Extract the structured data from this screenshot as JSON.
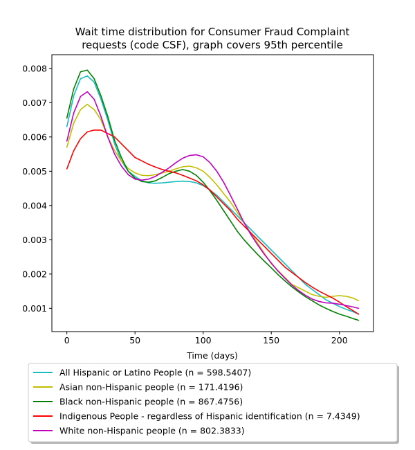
{
  "chart_data": {
    "type": "line",
    "title_lines": [
      "Wait time distribution  for Consumer Fraud Complaint",
      "requests (code CSF), graph covers 95th percentile"
    ],
    "xlabel": "Time (days)",
    "ylabel": "",
    "xlim": [
      -11,
      225
    ],
    "ylim": [
      0.00032,
      0.0084
    ],
    "xticks": [
      0,
      50,
      100,
      150,
      200
    ],
    "yticks": [
      0.001,
      0.002,
      0.003,
      0.004,
      0.005,
      0.006,
      0.007,
      0.008
    ],
    "ytick_labels": [
      "0.001",
      "0.002",
      "0.003",
      "0.004",
      "0.005",
      "0.006",
      "0.007",
      "0.008"
    ],
    "grid": false,
    "legend_position": "below",
    "x": [
      0,
      5,
      10,
      15,
      20,
      25,
      30,
      35,
      40,
      45,
      50,
      55,
      60,
      65,
      70,
      75,
      80,
      85,
      90,
      95,
      100,
      105,
      110,
      115,
      120,
      125,
      130,
      135,
      140,
      145,
      150,
      155,
      160,
      165,
      170,
      175,
      180,
      185,
      190,
      195,
      200,
      205,
      210,
      214
    ],
    "series": [
      {
        "name": "All Hispanic or Latino People (n = 598.5407)",
        "color": "#17bdbf",
        "values": [
          0.0063,
          0.0072,
          0.0077,
          0.00778,
          0.0076,
          0.0071,
          0.0065,
          0.0058,
          0.0053,
          0.005,
          0.00485,
          0.00472,
          0.00466,
          0.00465,
          0.00466,
          0.00468,
          0.0047,
          0.00471,
          0.0047,
          0.00466,
          0.00458,
          0.00445,
          0.0043,
          0.0041,
          0.0039,
          0.0037,
          0.0035,
          0.0033,
          0.0031,
          0.0029,
          0.0027,
          0.0025,
          0.0023,
          0.0021,
          0.0019,
          0.0017,
          0.00155,
          0.0014,
          0.00125,
          0.00115,
          0.00105,
          0.00097,
          0.0009,
          0.00083
        ]
      },
      {
        "name": "Asian non-Hispanic people (n = 171.4196)",
        "color": "#bfbf00",
        "values": [
          0.0057,
          0.0064,
          0.0068,
          0.00695,
          0.0068,
          0.0065,
          0.006,
          0.0056,
          0.0053,
          0.00508,
          0.00495,
          0.00488,
          0.00487,
          0.0049,
          0.00495,
          0.005,
          0.00507,
          0.00513,
          0.00515,
          0.0051,
          0.005,
          0.00482,
          0.0046,
          0.00435,
          0.0041,
          0.0038,
          0.0035,
          0.0032,
          0.0029,
          0.0026,
          0.0023,
          0.0021,
          0.0019,
          0.0017,
          0.0016,
          0.0015,
          0.0014,
          0.00135,
          0.00132,
          0.00135,
          0.00137,
          0.00135,
          0.0013,
          0.00122
        ]
      },
      {
        "name": "Black non-Hispanic people (n = 867.4756)",
        "color": "#008000",
        "values": [
          0.00655,
          0.0074,
          0.0079,
          0.00795,
          0.0077,
          0.0072,
          0.0066,
          0.0059,
          0.0054,
          0.005,
          0.0048,
          0.0047,
          0.00468,
          0.00472,
          0.00482,
          0.00493,
          0.005,
          0.00505,
          0.005,
          0.00488,
          0.00468,
          0.00443,
          0.00415,
          0.00385,
          0.00355,
          0.00325,
          0.003,
          0.00278,
          0.00257,
          0.00237,
          0.00218,
          0.00198,
          0.0018,
          0.00163,
          0.00148,
          0.00134,
          0.00122,
          0.0011,
          0.001,
          0.00091,
          0.00083,
          0.00077,
          0.0007,
          0.00065
        ]
      },
      {
        "name": "Indigenous People - regardless of Hispanic identification (n = 7.4349)",
        "color": "#ff0000",
        "values": [
          0.00507,
          0.0056,
          0.00595,
          0.00615,
          0.0062,
          0.0062,
          0.0061,
          0.006,
          0.0058,
          0.0056,
          0.0054,
          0.0053,
          0.0052,
          0.00512,
          0.00505,
          0.005,
          0.00495,
          0.00488,
          0.0048,
          0.00472,
          0.0046,
          0.00445,
          0.00425,
          0.00405,
          0.00385,
          0.0036,
          0.0034,
          0.0032,
          0.003,
          0.0028,
          0.0026,
          0.0024,
          0.0022,
          0.00205,
          0.0019,
          0.00175,
          0.00162,
          0.0015,
          0.0014,
          0.0013,
          0.00118,
          0.00105,
          0.00093,
          0.00083
        ]
      },
      {
        "name": "White non-Hispanic people (n = 802.3833)",
        "color": "#bf00bf",
        "values": [
          0.00588,
          0.0067,
          0.00718,
          0.00732,
          0.0071,
          0.0066,
          0.006,
          0.0055,
          0.00515,
          0.0049,
          0.00477,
          0.00474,
          0.00477,
          0.00485,
          0.00497,
          0.0051,
          0.00525,
          0.00538,
          0.00546,
          0.00548,
          0.00542,
          0.00525,
          0.005,
          0.00468,
          0.0043,
          0.0039,
          0.0035,
          0.00315,
          0.00285,
          0.00257,
          0.00232,
          0.00208,
          0.00188,
          0.00168,
          0.00152,
          0.00138,
          0.00127,
          0.0012,
          0.00116,
          0.00115,
          0.00112,
          0.00108,
          0.00104,
          0.001
        ]
      }
    ]
  }
}
